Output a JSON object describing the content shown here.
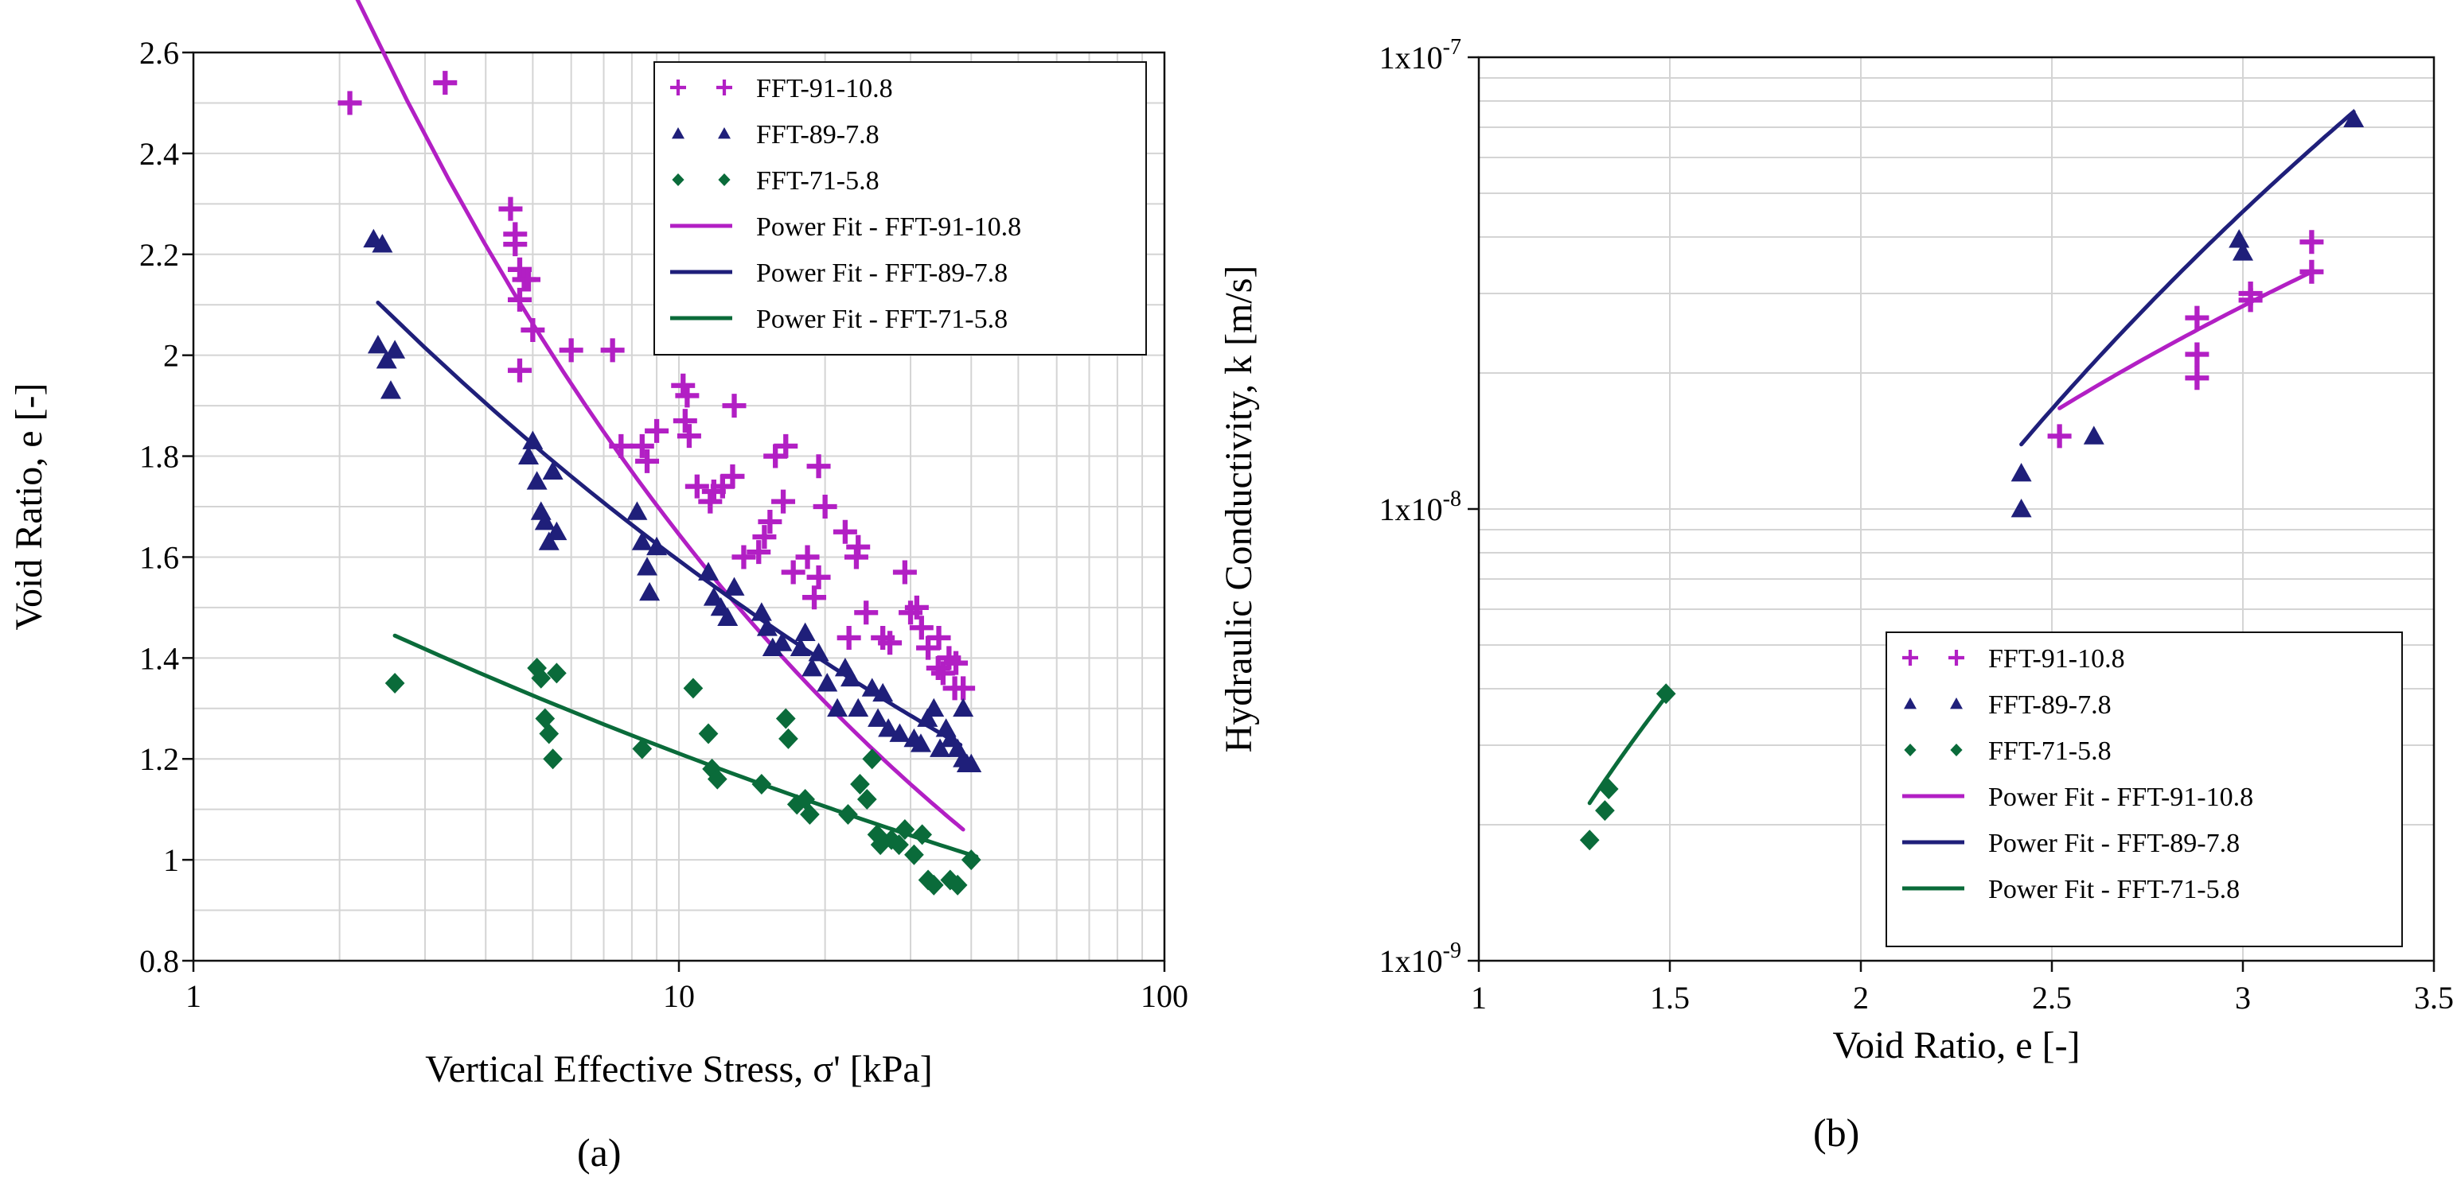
{
  "chart_data": [
    {
      "id": "a",
      "caption": "(a)",
      "type": "scatter",
      "xscale": "log",
      "yscale": "linear",
      "xlabel": "Vertical Effective Stress, σ' [kPa]",
      "ylabel": "Void Ratio, e [-]",
      "xlim": [
        1,
        100
      ],
      "ylim": [
        0.8,
        2.6
      ],
      "x_ticks": [
        1,
        10,
        100
      ],
      "x_tick_labels": [
        "1",
        "10",
        "100"
      ],
      "y_ticks": [
        0.8,
        1,
        1.2,
        1.4,
        1.6,
        1.8,
        2,
        2.2,
        2.4,
        2.6
      ],
      "y_tick_labels": [
        "0.8",
        "1",
        "1.2",
        "1.4",
        "1.6",
        "1.8",
        "2",
        "2.2",
        "2.4",
        "2.6"
      ],
      "grid": true,
      "legend_position": "top-right",
      "series": [
        {
          "name": "FFT-91-10.8",
          "kind": "points",
          "marker": "plus",
          "color": "#b21fc4",
          "points": [
            [
              2.1,
              2.5
            ],
            [
              3.3,
              2.54
            ],
            [
              4.5,
              2.29
            ],
            [
              4.6,
              2.24
            ],
            [
              4.6,
              2.22
            ],
            [
              4.7,
              2.17
            ],
            [
              4.8,
              2.15
            ],
            [
              4.9,
              2.15
            ],
            [
              4.7,
              2.11
            ],
            [
              5.0,
              2.05
            ],
            [
              4.7,
              1.97
            ],
            [
              6.0,
              2.01
            ],
            [
              7.3,
              2.01
            ],
            [
              7.6,
              1.82
            ],
            [
              8.4,
              1.82
            ],
            [
              8.6,
              1.79
            ],
            [
              9.0,
              1.85
            ],
            [
              10.2,
              1.94
            ],
            [
              10.3,
              1.87
            ],
            [
              10.4,
              1.92
            ],
            [
              10.5,
              1.84
            ],
            [
              10.9,
              1.74
            ],
            [
              11.6,
              1.71
            ],
            [
              11.8,
              1.73
            ],
            [
              12.3,
              1.74
            ],
            [
              13.0,
              1.9
            ],
            [
              12.9,
              1.76
            ],
            [
              13.6,
              1.6
            ],
            [
              14.6,
              1.61
            ],
            [
              15.0,
              1.64
            ],
            [
              15.4,
              1.67
            ],
            [
              15.8,
              1.8
            ],
            [
              16.6,
              1.82
            ],
            [
              16.4,
              1.71
            ],
            [
              17.2,
              1.57
            ],
            [
              18.4,
              1.6
            ],
            [
              19.0,
              1.52
            ],
            [
              19.4,
              1.78
            ],
            [
              20.0,
              1.7
            ],
            [
              19.4,
              1.56
            ],
            [
              22.0,
              1.65
            ],
            [
              22.4,
              1.44
            ],
            [
              23.4,
              1.62
            ],
            [
              23.2,
              1.6
            ],
            [
              24.3,
              1.49
            ],
            [
              26.3,
              1.44
            ],
            [
              27.2,
              1.43
            ],
            [
              29.2,
              1.57
            ],
            [
              30.0,
              1.49
            ],
            [
              30.9,
              1.5
            ],
            [
              31.6,
              1.46
            ],
            [
              32.6,
              1.42
            ],
            [
              34.3,
              1.44
            ],
            [
              34.2,
              1.38
            ],
            [
              35.0,
              1.37
            ],
            [
              36.0,
              1.4
            ],
            [
              37.2,
              1.39
            ],
            [
              37.0,
              1.34
            ],
            [
              38.5,
              1.34
            ]
          ]
        },
        {
          "name": "FFT-89-7.8",
          "kind": "points",
          "marker": "triangle",
          "color": "#1f1f7a",
          "points": [
            [
              2.35,
              2.23
            ],
            [
              2.45,
              2.22
            ],
            [
              2.4,
              2.02
            ],
            [
              2.5,
              1.99
            ],
            [
              2.6,
              2.01
            ],
            [
              2.55,
              1.93
            ],
            [
              4.9,
              1.8
            ],
            [
              5.0,
              1.83
            ],
            [
              5.1,
              1.75
            ],
            [
              5.2,
              1.69
            ],
            [
              5.3,
              1.67
            ],
            [
              5.4,
              1.63
            ],
            [
              5.5,
              1.77
            ],
            [
              5.6,
              1.65
            ],
            [
              8.2,
              1.69
            ],
            [
              8.4,
              1.63
            ],
            [
              8.6,
              1.58
            ],
            [
              8.7,
              1.53
            ],
            [
              9.0,
              1.62
            ],
            [
              11.5,
              1.57
            ],
            [
              11.8,
              1.52
            ],
            [
              12.2,
              1.5
            ],
            [
              12.6,
              1.48
            ],
            [
              13.0,
              1.54
            ],
            [
              14.8,
              1.49
            ],
            [
              15.2,
              1.46
            ],
            [
              15.6,
              1.42
            ],
            [
              16.3,
              1.43
            ],
            [
              17.8,
              1.42
            ],
            [
              18.2,
              1.45
            ],
            [
              18.8,
              1.38
            ],
            [
              19.4,
              1.41
            ],
            [
              20.2,
              1.35
            ],
            [
              21.2,
              1.3
            ],
            [
              22.0,
              1.38
            ],
            [
              22.6,
              1.36
            ],
            [
              23.4,
              1.3
            ],
            [
              25.0,
              1.34
            ],
            [
              25.7,
              1.28
            ],
            [
              26.3,
              1.33
            ],
            [
              27.0,
              1.26
            ],
            [
              28.5,
              1.25
            ],
            [
              30.5,
              1.24
            ],
            [
              31.5,
              1.23
            ],
            [
              32.5,
              1.28
            ],
            [
              33.5,
              1.3
            ],
            [
              34.5,
              1.22
            ],
            [
              35.5,
              1.26
            ],
            [
              36.3,
              1.24
            ],
            [
              37.5,
              1.22
            ],
            [
              38.5,
              1.2
            ],
            [
              39.2,
              1.19
            ],
            [
              40.0,
              1.19
            ],
            [
              38.5,
              1.3
            ]
          ]
        },
        {
          "name": "FFT-71-5.8",
          "kind": "points",
          "marker": "diamond",
          "color": "#0a6b3a",
          "points": [
            [
              2.6,
              1.35
            ],
            [
              5.1,
              1.38
            ],
            [
              5.2,
              1.36
            ],
            [
              5.3,
              1.28
            ],
            [
              5.4,
              1.25
            ],
            [
              5.5,
              1.2
            ],
            [
              5.6,
              1.37
            ],
            [
              8.4,
              1.22
            ],
            [
              10.7,
              1.34
            ],
            [
              11.5,
              1.25
            ],
            [
              11.7,
              1.18
            ],
            [
              12.0,
              1.16
            ],
            [
              14.8,
              1.15
            ],
            [
              16.6,
              1.28
            ],
            [
              16.8,
              1.24
            ],
            [
              17.5,
              1.11
            ],
            [
              18.2,
              1.12
            ],
            [
              18.6,
              1.09
            ],
            [
              22.3,
              1.09
            ],
            [
              23.6,
              1.15
            ],
            [
              24.4,
              1.12
            ],
            [
              25.0,
              1.2
            ],
            [
              25.6,
              1.05
            ],
            [
              26.0,
              1.03
            ],
            [
              27.4,
              1.04
            ],
            [
              28.4,
              1.03
            ],
            [
              29.2,
              1.06
            ],
            [
              30.5,
              1.01
            ],
            [
              31.7,
              1.05
            ],
            [
              32.6,
              0.96
            ],
            [
              33.5,
              0.95
            ],
            [
              36.2,
              0.96
            ],
            [
              37.5,
              0.95
            ],
            [
              40.0,
              1.0
            ]
          ]
        },
        {
          "name": "Power Fit - FFT-91-10.8",
          "kind": "line",
          "color": "#b21fc4",
          "width": 5,
          "x_range": [
            2.15,
            38.5
          ],
          "a": 3.485,
          "b": -0.326
        },
        {
          "name": "Power Fit - FFT-89-7.8",
          "kind": "line",
          "color": "#1f1f7a",
          "width": 5,
          "x_range": [
            2.4,
            38.0
          ],
          "a": 2.496,
          "b": -0.195
        },
        {
          "name": "Power Fit - FFT-71-5.8",
          "kind": "line",
          "color": "#0a6b3a",
          "width": 5,
          "x_range": [
            2.6,
            41.0
          ],
          "a": 1.637,
          "b": -0.131
        }
      ]
    },
    {
      "id": "b",
      "caption": "(b)",
      "type": "scatter",
      "xscale": "linear",
      "yscale": "log",
      "xlabel": "Void Ratio, e [-]",
      "ylabel": "Hydraulic Conductivity, k [m/s]",
      "xlim": [
        1,
        3.5
      ],
      "ylim": [
        1e-09,
        1e-07
      ],
      "x_ticks": [
        1,
        1.5,
        2,
        2.5,
        3,
        3.5
      ],
      "x_tick_labels": [
        "1",
        "1.5",
        "2",
        "2.5",
        "3",
        "3.5"
      ],
      "y_ticks": [
        1e-09,
        1e-08,
        1e-07
      ],
      "y_tick_labels": [
        {
          "base": "1x10",
          "exp": "-9"
        },
        {
          "base": "1x10",
          "exp": "-8"
        },
        {
          "base": "1x10",
          "exp": "-7"
        }
      ],
      "grid": true,
      "legend_position": "lower-right",
      "series": [
        {
          "name": "FFT-91-10.8",
          "kind": "points",
          "marker": "plus",
          "color": "#b21fc4",
          "points": [
            [
              2.52,
              1.45e-08
            ],
            [
              2.88,
              2.65e-08
            ],
            [
              2.88,
              2.2e-08
            ],
            [
              2.88,
              1.95e-08
            ],
            [
              3.02,
              2.9e-08
            ],
            [
              3.02,
              3e-08
            ],
            [
              3.18,
              3.9e-08
            ],
            [
              3.18,
              3.35e-08
            ]
          ]
        },
        {
          "name": "FFT-89-7.8",
          "kind": "points",
          "marker": "triangle",
          "color": "#1f1f7a",
          "points": [
            [
              2.42,
              1.2e-08
            ],
            [
              2.42,
              1e-08
            ],
            [
              2.61,
              1.45e-08
            ],
            [
              2.99,
              3.95e-08
            ],
            [
              3.0,
              3.7e-08
            ],
            [
              3.29,
              7.3e-08
            ]
          ]
        },
        {
          "name": "FFT-71-5.8",
          "kind": "points",
          "marker": "diamond",
          "color": "#0a6b3a",
          "points": [
            [
              1.29,
              1.85e-09
            ],
            [
              1.33,
              2.15e-09
            ],
            [
              1.34,
              2.4e-09
            ],
            [
              1.49,
              3.9e-09
            ]
          ]
        },
        {
          "name": "Power Fit - FFT-91-10.8",
          "kind": "line",
          "color": "#b21fc4",
          "width": 5,
          "x_range": [
            2.52,
            3.18
          ],
          "a": 1.057e-09,
          "b": 2.987
        },
        {
          "name": "Power Fit - FFT-89-7.8",
          "kind": "line",
          "color": "#1f1f7a",
          "width": 5,
          "x_range": [
            2.42,
            3.29
          ],
          "a": 1.058e-10,
          "b": 5.52
        },
        {
          "name": "Power Fit - FFT-71-5.8",
          "kind": "line",
          "color": "#0a6b3a",
          "width": 5,
          "x_range": [
            1.29,
            1.49
          ],
          "a": 8.55e-10,
          "b": 3.77
        }
      ]
    }
  ]
}
